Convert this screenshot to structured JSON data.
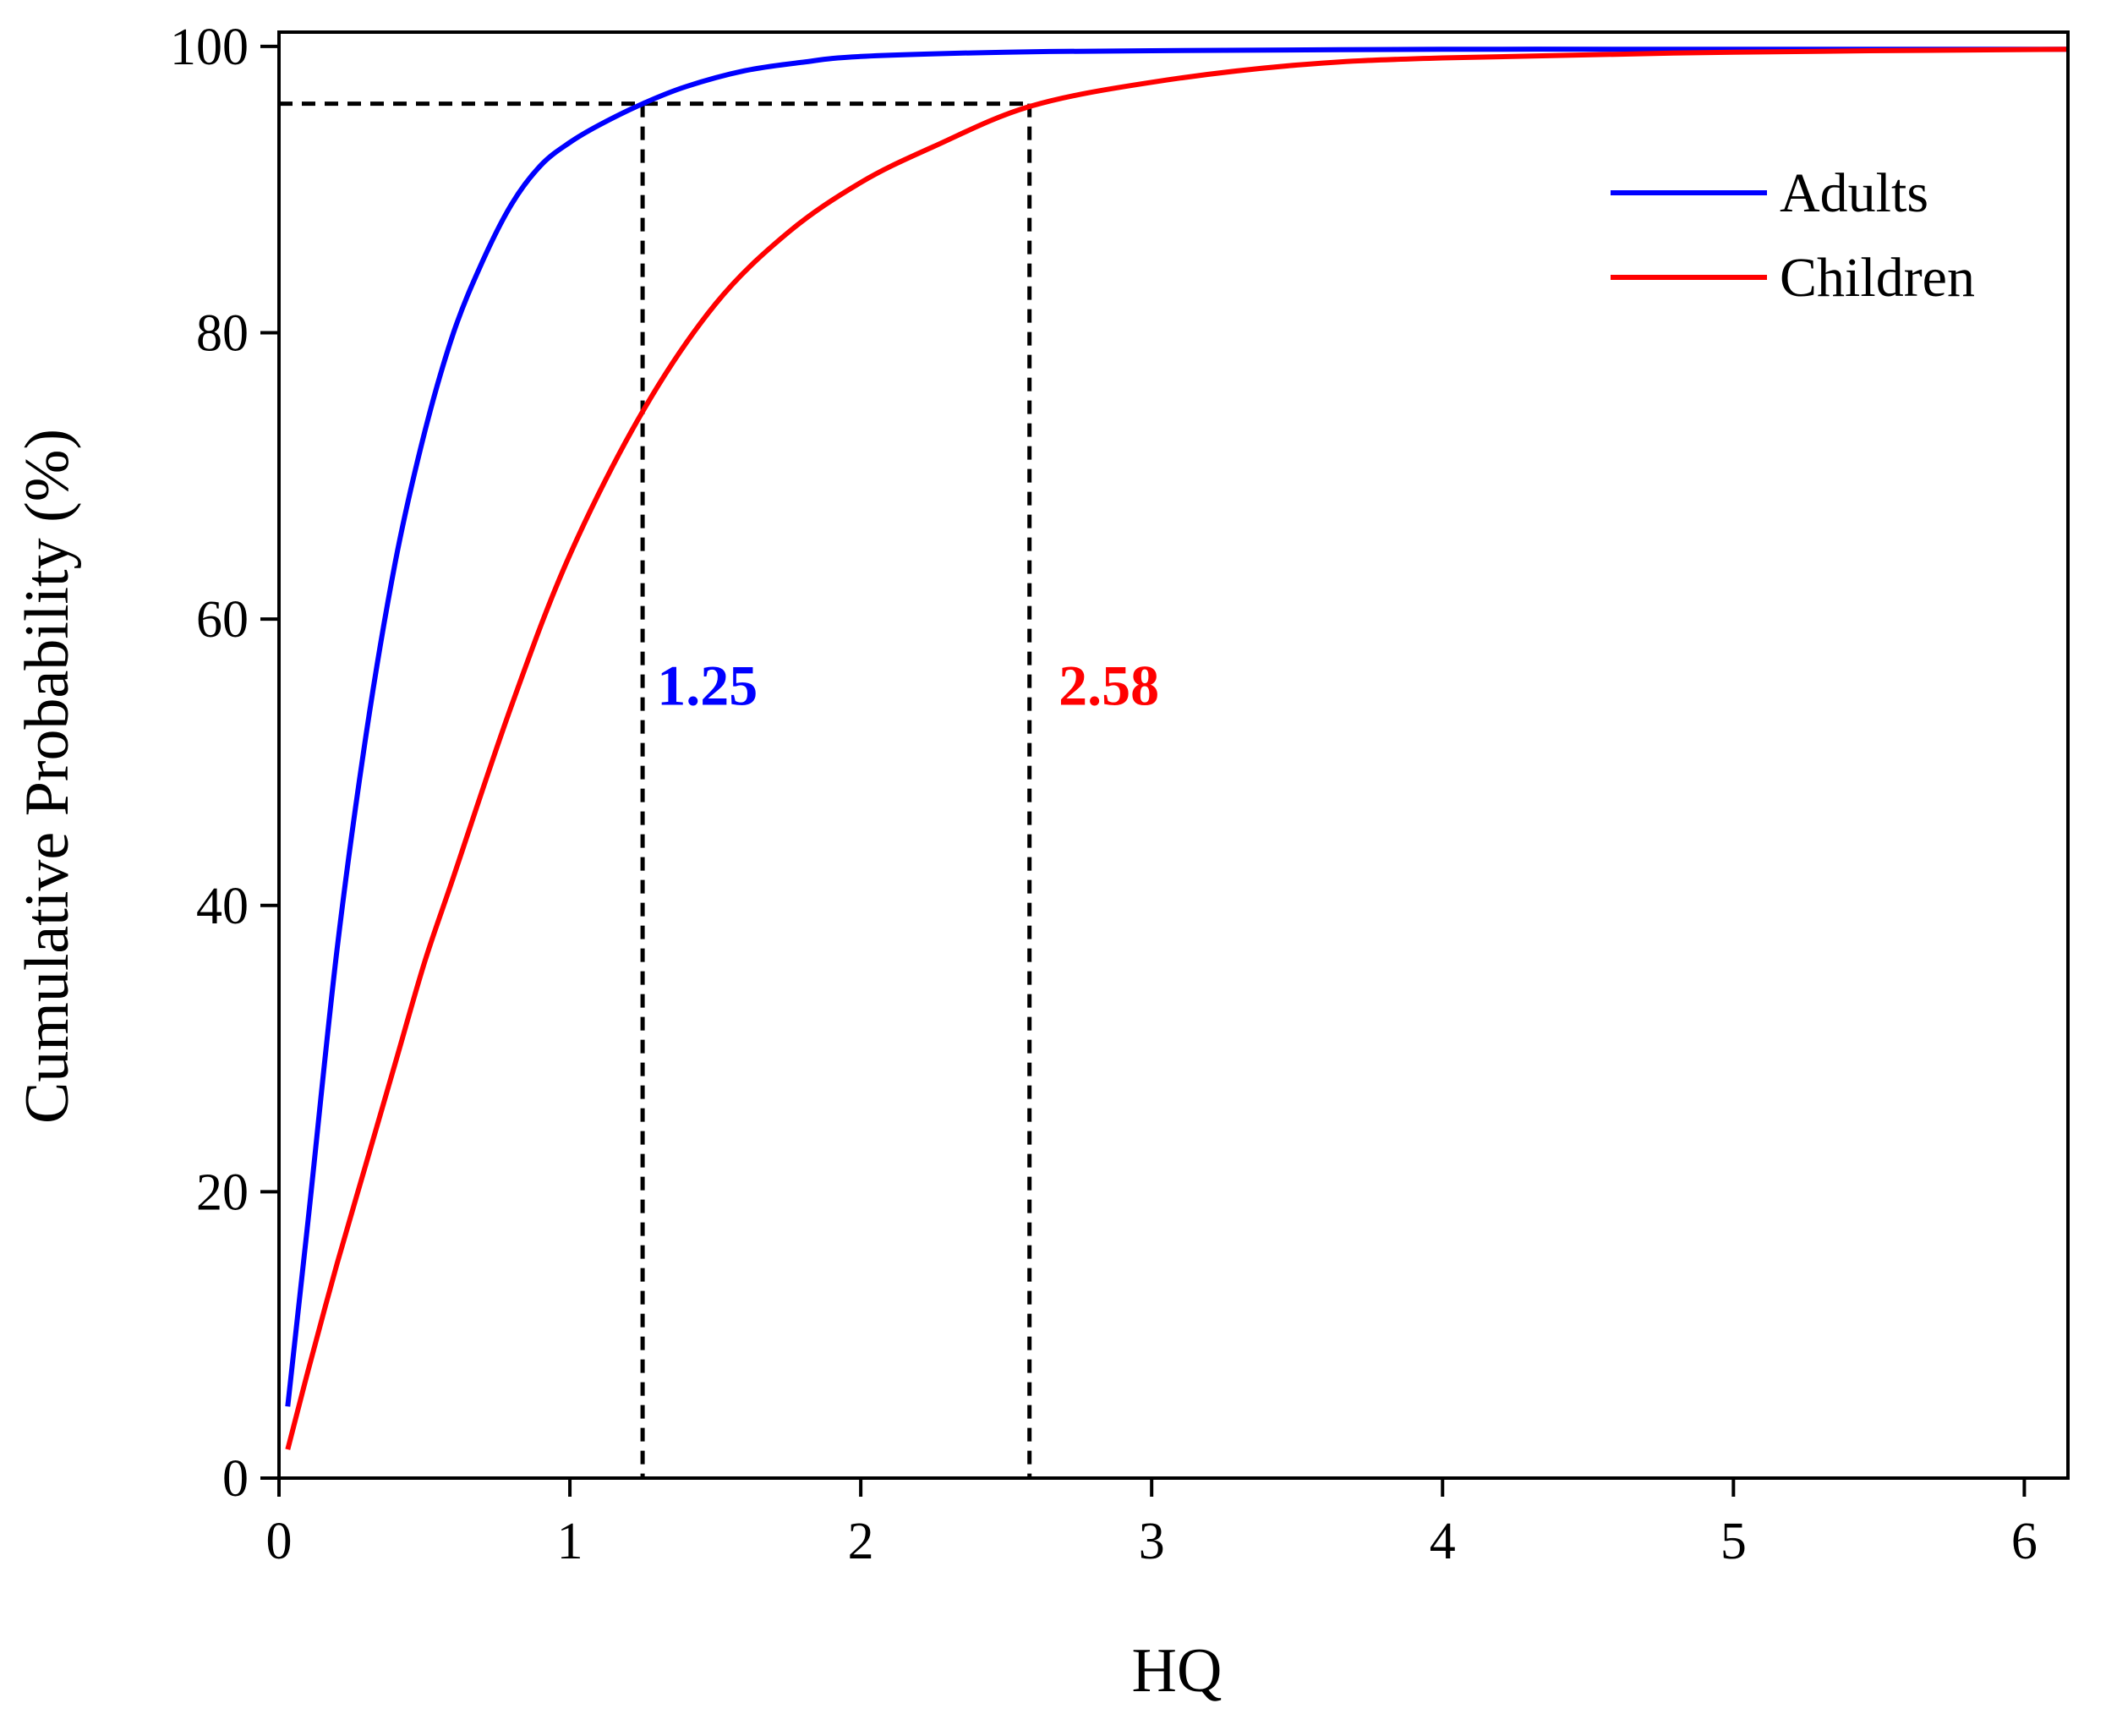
{
  "chart_data": {
    "type": "line",
    "title": "",
    "xlabel": "HQ",
    "ylabel": "Cumulative Probability (%)",
    "xlim": [
      0,
      6.15
    ],
    "ylim": [
      0,
      101
    ],
    "xticks": [
      0,
      1,
      2,
      3,
      4,
      5,
      6
    ],
    "xtick_labels": [
      "0",
      "1",
      "2",
      "3",
      "4",
      "5",
      "6"
    ],
    "yticks": [
      0,
      20,
      40,
      60,
      80,
      100
    ],
    "ytick_labels": [
      "0",
      "20",
      "40",
      "60",
      "80",
      "100"
    ],
    "grid": false,
    "legend_position": "top-right",
    "series": [
      {
        "name": "Adults",
        "color": "#0000ff",
        "x": [
          0.03,
          0.1,
          0.2,
          0.3,
          0.4,
          0.5,
          0.6,
          0.7,
          0.8,
          0.9,
          1.0,
          1.1,
          1.25,
          1.4,
          1.6,
          1.8,
          2.0,
          2.5,
          3.0,
          4.0,
          5.0,
          6.15
        ],
        "y": [
          5,
          18,
          37,
          52,
          64,
          73,
          80,
          85,
          89,
          91.7,
          93.3,
          94.5,
          96,
          97.2,
          98.3,
          98.9,
          99.3,
          99.6,
          99.7,
          99.8,
          99.8,
          99.8
        ]
      },
      {
        "name": "Children",
        "color": "#ff0000",
        "x": [
          0.03,
          0.1,
          0.2,
          0.3,
          0.4,
          0.5,
          0.6,
          0.8,
          1.0,
          1.25,
          1.5,
          1.75,
          2.0,
          2.25,
          2.58,
          3.0,
          3.5,
          4.0,
          5.0,
          6.15
        ],
        "y": [
          2,
          7.5,
          15,
          22,
          29,
          36,
          42,
          54,
          64.5,
          74.5,
          82,
          87,
          90.5,
          93,
          95.8,
          97.5,
          98.7,
          99.2,
          99.6,
          99.8
        ]
      }
    ],
    "reference_lines": {
      "horizontal_y": 96,
      "vertical_x": [
        1.25,
        2.58
      ],
      "style": "dashed",
      "color": "#000000"
    },
    "annotations": [
      {
        "text": "1.25",
        "x": 1.3,
        "y": 54,
        "color": "#0000ff"
      },
      {
        "text": "2.58",
        "x": 2.68,
        "y": 54,
        "color": "#ff0000"
      }
    ]
  }
}
